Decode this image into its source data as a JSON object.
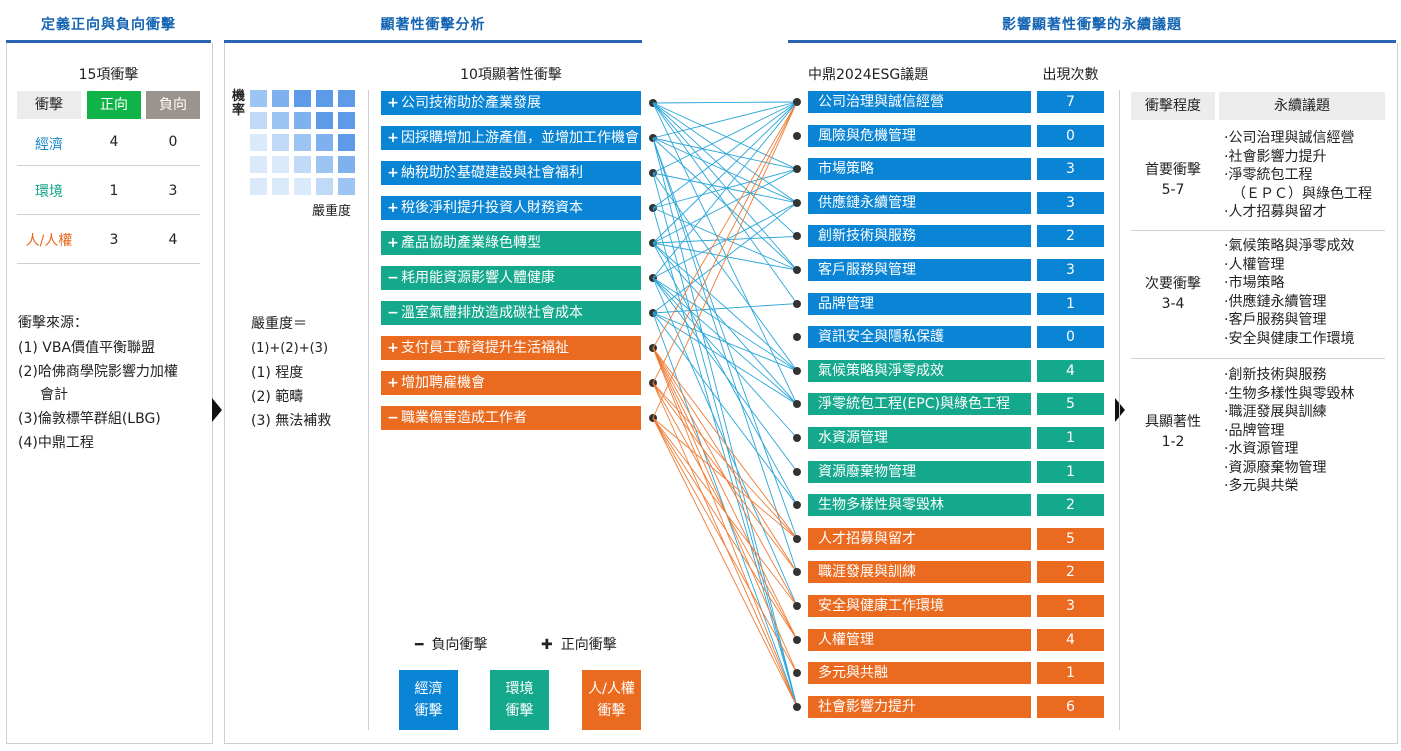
{
  "sections": {
    "left_title": "定義正向與負向衝擊",
    "mid_title": "顯著性衝擊分析",
    "right_title": "影響顯著性衝擊的永續議題"
  },
  "left_panel": {
    "count_title": "15項衝擊",
    "col_impact": "衝擊",
    "col_positive": "正向",
    "col_negative": "負向",
    "rows": [
      {
        "label": "經濟",
        "positive": "4",
        "negative": "0",
        "color": "#1a87c9"
      },
      {
        "label": "環境",
        "positive": "1",
        "negative": "3",
        "color": "#13a189"
      },
      {
        "label": "人/人權",
        "positive": "3",
        "negative": "4",
        "color": "#e5671c"
      }
    ],
    "source_title": "衝擊來源：",
    "sources": [
      "(1) VBA價值平衡聯盟",
      "(2)哈佛商學院影響力加權",
      "會計",
      "(3)倫敦標竿群組(LBG)",
      "(4)中鼎工程"
    ],
    "positive_color": "#0fb347",
    "negative_color": "#9b938d"
  },
  "matrix": {
    "y_label": "機率",
    "x_label": "嚴重度"
  },
  "severity": {
    "title": "嚴重度＝",
    "formula": "(1)+(2)+(3)",
    "items": [
      "(1) 程度",
      "(2) 範疇",
      "(3) 無法補救"
    ]
  },
  "impacts": {
    "title": "10項顯著性衝擊",
    "items": [
      {
        "sign": "+",
        "label": "公司技術助於產業發展",
        "cat": "blue"
      },
      {
        "sign": "+",
        "label": "因採購增加上游產值，並增加工作機會",
        "cat": "blue"
      },
      {
        "sign": "+",
        "label": "納稅助於基礎建設與社會福利",
        "cat": "blue"
      },
      {
        "sign": "+",
        "label": "稅後淨利提升投資人財務資本",
        "cat": "blue"
      },
      {
        "sign": "+",
        "label": "產品協助產業綠色轉型",
        "cat": "green"
      },
      {
        "sign": "−",
        "label": "耗用能資源影響人體健康",
        "cat": "green"
      },
      {
        "sign": "−",
        "label": "溫室氣體排放造成碳社會成本",
        "cat": "green"
      },
      {
        "sign": "+",
        "label": "支付員工薪資提升生活福祉",
        "cat": "orange"
      },
      {
        "sign": "+",
        "label": "增加聘雇機會",
        "cat": "orange"
      },
      {
        "sign": "−",
        "label": "職業傷害造成工作者",
        "cat": "orange"
      }
    ]
  },
  "topics": {
    "title": "中鼎2024ESG議題",
    "count_title": "出現次數",
    "items": [
      {
        "label": "公司治理與誠信經營",
        "count": "7",
        "cat": "blue"
      },
      {
        "label": "風險與危機管理",
        "count": "0",
        "cat": "blue"
      },
      {
        "label": "市場策略",
        "count": "3",
        "cat": "blue"
      },
      {
        "label": "供應鏈永續管理",
        "count": "3",
        "cat": "blue"
      },
      {
        "label": "創新技術與服務",
        "count": "2",
        "cat": "blue"
      },
      {
        "label": "客戶服務與管理",
        "count": "3",
        "cat": "blue"
      },
      {
        "label": "品牌管理",
        "count": "1",
        "cat": "blue"
      },
      {
        "label": "資訊安全與隱私保護",
        "count": "0",
        "cat": "blue"
      },
      {
        "label": "氣候策略與淨零成效",
        "count": "4",
        "cat": "green"
      },
      {
        "label": "淨零統包工程(EPC)與綠色工程",
        "count": "5",
        "cat": "green"
      },
      {
        "label": "水資源管理",
        "count": "1",
        "cat": "green"
      },
      {
        "label": "資源廢棄物管理",
        "count": "1",
        "cat": "green"
      },
      {
        "label": "生物多樣性與零毀林",
        "count": "2",
        "cat": "green"
      },
      {
        "label": "人才招募與留才",
        "count": "5",
        "cat": "orange"
      },
      {
        "label": "職涯發展與訓練",
        "count": "2",
        "cat": "orange"
      },
      {
        "label": "安全與健康工作環境",
        "count": "3",
        "cat": "orange"
      },
      {
        "label": "人權管理",
        "count": "4",
        "cat": "orange"
      },
      {
        "label": "多元與共融",
        "count": "1",
        "cat": "orange"
      },
      {
        "label": "社會影響力提升",
        "count": "6",
        "cat": "orange"
      }
    ]
  },
  "legend": {
    "negative": "負向衝擊",
    "positive": "正向衝擊",
    "economy": [
      "經濟",
      "衝擊"
    ],
    "environment": [
      "環境",
      "衝擊"
    ],
    "people": [
      "人/人權",
      "衝擊"
    ]
  },
  "right_table": {
    "col_level": "衝擊程度",
    "col_topics": "永續議題",
    "groups": [
      {
        "level": "首要衝擊",
        "range": "5-7",
        "topics": [
          "·公司治理與誠信經營",
          "·社會影響力提升",
          "·淨零統包工程",
          "（ＥＰＣ）與綠色工程",
          "·人才招募與留才"
        ]
      },
      {
        "level": "次要衝擊",
        "range": "3-4",
        "topics": [
          "·氣候策略與淨零成效",
          "·人權管理",
          "·市場策略",
          "·供應鏈永續管理",
          "·客戶服務與管理",
          "·安全與健康工作環境"
        ]
      },
      {
        "level": "具顯著性",
        "range": "1-2",
        "topics": [
          "·創新技術與服務",
          "·生物多樣性與零毀林",
          "·職涯發展與訓練",
          "·品牌管理",
          "·水資源管理",
          "·資源廢棄物管理",
          "·多元與共榮"
        ]
      }
    ]
  },
  "colors": {
    "blue": "#0a84d4",
    "green": "#14a88c",
    "orange": "#ea6a1f",
    "section_title": "#1565b3",
    "link_blue": "#29a6d9",
    "link_orange": "#f07b34"
  },
  "links": [
    {
      "from": 0,
      "to": [
        0,
        2,
        3,
        4,
        5,
        6,
        9
      ],
      "cat": "blue"
    },
    {
      "from": 1,
      "to": [
        0,
        2,
        3,
        5,
        13,
        14,
        18
      ],
      "cat": "blue"
    },
    {
      "from": 2,
      "to": [
        0,
        3,
        8,
        18
      ],
      "cat": "blue"
    },
    {
      "from": 3,
      "to": [
        0,
        2,
        5,
        18
      ],
      "cat": "blue"
    },
    {
      "from": 4,
      "to": [
        0,
        2,
        4,
        5,
        8,
        9,
        12
      ],
      "cat": "blue"
    },
    {
      "from": 5,
      "to": [
        0,
        3,
        8,
        9,
        10,
        11,
        15
      ],
      "cat": "blue"
    },
    {
      "from": 6,
      "to": [
        3,
        6,
        8,
        9,
        12,
        18
      ],
      "cat": "blue"
    },
    {
      "from": 7,
      "to": [
        0,
        13,
        14,
        15,
        16,
        17,
        18
      ],
      "cat": "orange"
    },
    {
      "from": 8,
      "to": [
        0,
        13,
        14,
        16,
        18
      ],
      "cat": "orange"
    },
    {
      "from": 9,
      "to": [
        0,
        13,
        15,
        16,
        17,
        18
      ],
      "cat": "orange"
    }
  ]
}
